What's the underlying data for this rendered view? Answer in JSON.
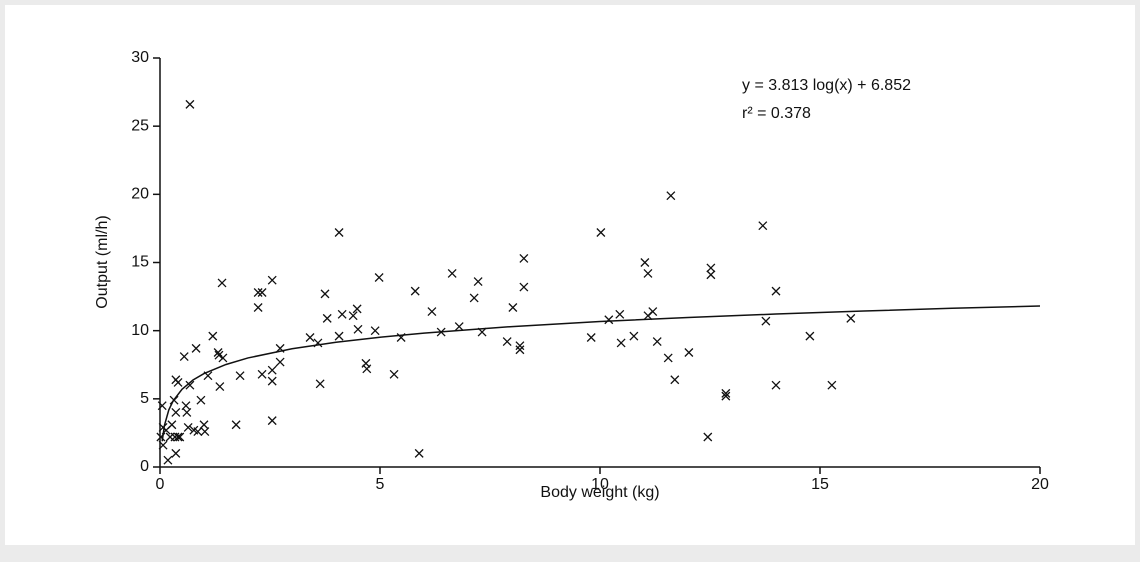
{
  "chart_data": {
    "type": "scatter",
    "x_label": "Body weight (kg)",
    "y_label": "Output (ml/h)",
    "annotations": [
      "y = 3.813 log(x) + 6.852",
      "r² = 0.378"
    ],
    "xlim": [
      0,
      20
    ],
    "xticks": [
      0,
      5,
      10,
      15,
      20
    ],
    "ylim": [
      0,
      30
    ],
    "yticks": [
      0,
      5,
      10,
      15,
      20,
      25,
      30
    ],
    "grid": false,
    "series": [
      {
        "marker": "x",
        "color": "#111111",
        "x": [
          0.68,
          0.05,
          0.07,
          0.02,
          0.07,
          0.14,
          0.18,
          0.23,
          0.27,
          0.32,
          0.34,
          0.36,
          0.36,
          0.41,
          0.41,
          0.45,
          0.36,
          0.59,
          0.55,
          0.61,
          0.68,
          0.64,
          0.77,
          0.82,
          0.86,
          0.93,
          1.0,
          1.02,
          1.09,
          1.2,
          1.32,
          1.34,
          1.36,
          1.41,
          1.43,
          1.73,
          1.82,
          2.23,
          2.32,
          2.23,
          2.32,
          2.55,
          2.55,
          2.55,
          2.55,
          2.73,
          2.73,
          3.41,
          3.59,
          3.64,
          3.75,
          3.8,
          4.07,
          4.07,
          4.14,
          4.39,
          4.48,
          4.5,
          4.68,
          4.7,
          4.89,
          4.98,
          5.32,
          5.48,
          5.8,
          5.89,
          6.18,
          6.39,
          6.64,
          6.8,
          7.14,
          7.23,
          7.32,
          7.89,
          8.02,
          8.18,
          8.18,
          8.27,
          8.27,
          9.8,
          10.02,
          10.2,
          10.45,
          10.48,
          10.77,
          11.02,
          11.09,
          11.09,
          11.2,
          11.3,
          11.61,
          11.55,
          11.7,
          12.02,
          12.45,
          12.52,
          12.52,
          12.86,
          12.86,
          13.7,
          13.77,
          14.0,
          14.0,
          14.77,
          15.27,
          15.7
        ],
        "y": [
          26.6,
          4.5,
          2.9,
          2.2,
          1.6,
          2.7,
          0.5,
          2.2,
          3.1,
          4.9,
          2.2,
          1.0,
          6.4,
          6.2,
          2.2,
          2.2,
          4.0,
          4.5,
          8.1,
          4.0,
          6.0,
          2.9,
          2.7,
          8.7,
          2.6,
          4.9,
          3.1,
          2.6,
          6.7,
          9.6,
          8.4,
          8.2,
          5.9,
          13.5,
          8.0,
          3.1,
          6.7,
          12.8,
          12.8,
          11.7,
          6.8,
          13.7,
          7.1,
          6.3,
          3.4,
          8.7,
          7.7,
          9.5,
          9.1,
          6.1,
          12.7,
          10.9,
          17.2,
          9.6,
          11.2,
          11.1,
          11.6,
          10.1,
          7.6,
          7.2,
          10.0,
          13.9,
          6.8,
          9.5,
          12.9,
          1.0,
          11.4,
          9.9,
          14.2,
          10.3,
          12.4,
          13.6,
          9.9,
          9.2,
          11.7,
          8.9,
          8.6,
          15.3,
          13.2,
          9.5,
          17.2,
          10.8,
          11.2,
          9.1,
          9.6,
          15.0,
          14.2,
          11.1,
          11.4,
          9.2,
          19.9,
          8.0,
          6.4,
          8.4,
          2.2,
          14.6,
          14.1,
          5.4,
          5.2,
          17.7,
          10.7,
          12.9,
          6.0,
          9.6,
          6.0,
          10.9
        ]
      }
    ],
    "fit_line": {
      "color": "#111111",
      "x": [
        0.05,
        0.1,
        0.2,
        0.3,
        0.5,
        0.75,
        1,
        1.5,
        2,
        3,
        4,
        5,
        6,
        8,
        10,
        12,
        14,
        16,
        18,
        20
      ],
      "y": [
        1.89,
        3.04,
        4.19,
        4.86,
        5.7,
        6.38,
        6.85,
        7.52,
        8.0,
        8.67,
        9.15,
        9.52,
        9.82,
        10.3,
        10.67,
        10.97,
        11.22,
        11.44,
        11.64,
        11.81
      ]
    }
  }
}
